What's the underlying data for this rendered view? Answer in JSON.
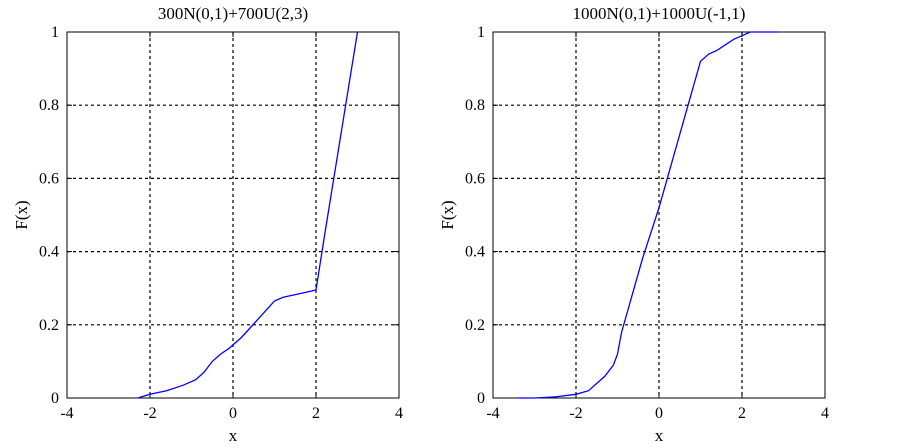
{
  "chart_data": [
    {
      "type": "line",
      "title": "300N(0,1)+700U(2,3)",
      "xlabel": "x",
      "ylabel": "F(x)",
      "xlim": [
        -4,
        4
      ],
      "ylim": [
        0,
        1
      ],
      "xticks": [
        "-4",
        "-2",
        "0",
        "2",
        "4"
      ],
      "yticks": [
        "0",
        "0.2",
        "0.4",
        "0.6",
        "0.8",
        "1"
      ],
      "grid": true,
      "line_color": "#0000ff",
      "series": [
        {
          "x": [
            -2.3,
            -2.0,
            -1.6,
            -1.2,
            -0.9,
            -0.7,
            -0.5,
            -0.3,
            -0.1,
            0.0,
            0.2,
            0.4,
            0.6,
            0.8,
            1.0,
            1.2,
            1.4,
            1.6,
            1.8,
            2.0,
            2.2,
            2.4,
            2.6,
            2.8,
            3.0
          ],
          "y": [
            0.0,
            0.01,
            0.02,
            0.035,
            0.05,
            0.07,
            0.1,
            0.12,
            0.135,
            0.145,
            0.165,
            0.19,
            0.215,
            0.24,
            0.265,
            0.275,
            0.28,
            0.285,
            0.29,
            0.295,
            0.44,
            0.58,
            0.72,
            0.86,
            1.0
          ]
        }
      ]
    },
    {
      "type": "line",
      "title": "1000N(0,1)+1000U(-1,1)",
      "xlabel": "x",
      "ylabel": "F(x)",
      "xlim": [
        -4,
        4
      ],
      "ylim": [
        0,
        1
      ],
      "xticks": [
        "-4",
        "-2",
        "0",
        "2",
        "4"
      ],
      "yticks": [
        "0",
        "0.2",
        "0.4",
        "0.6",
        "0.8",
        "1"
      ],
      "grid": true,
      "line_color": "#0000ff",
      "series": [
        {
          "x": [
            -3.4,
            -3.0,
            -2.5,
            -2.0,
            -1.7,
            -1.5,
            -1.3,
            -1.1,
            -1.0,
            -0.9,
            -0.8,
            -0.6,
            -0.4,
            -0.2,
            0.0,
            0.2,
            0.4,
            0.6,
            0.8,
            1.0,
            1.2,
            1.4,
            1.6,
            1.8,
            2.0,
            2.2,
            2.5,
            2.9
          ],
          "y": [
            0.0,
            0.0,
            0.003,
            0.01,
            0.02,
            0.04,
            0.06,
            0.09,
            0.12,
            0.18,
            0.22,
            0.3,
            0.38,
            0.45,
            0.52,
            0.6,
            0.68,
            0.76,
            0.84,
            0.92,
            0.94,
            0.95,
            0.965,
            0.98,
            0.99,
            1.0,
            1.0,
            1.0
          ]
        }
      ]
    }
  ]
}
